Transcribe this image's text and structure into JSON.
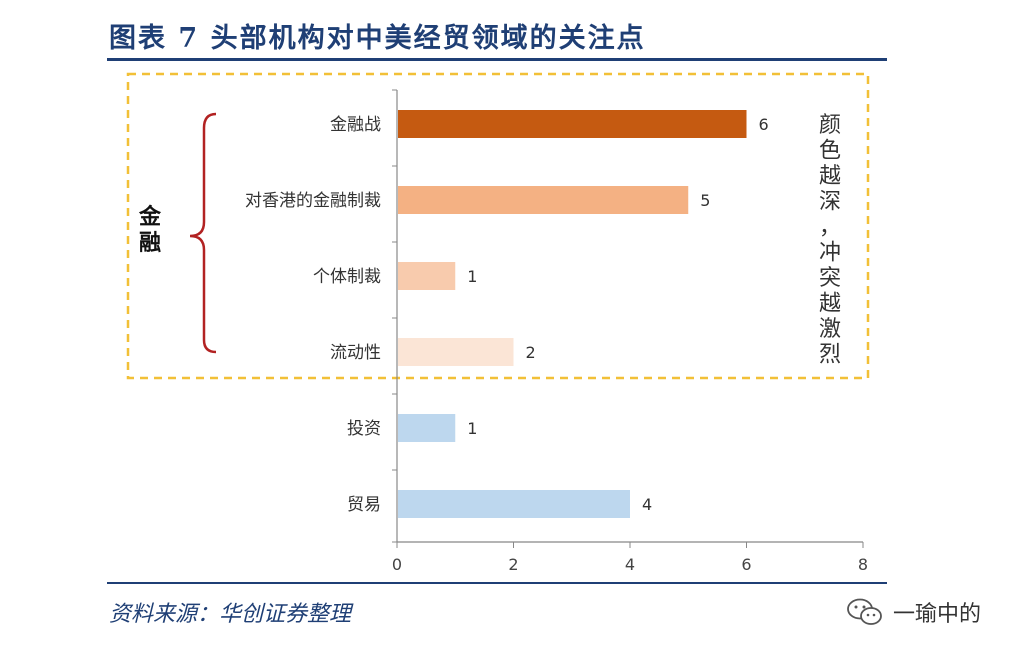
{
  "header": {
    "title": "图表 7   头部机构对中美经贸领域的关注点"
  },
  "footer": {
    "source": "资料来源：华创证券整理",
    "watermark": "一瑜中的"
  },
  "annotations": {
    "group_label": "金融",
    "side_note": "颜色越深，冲突越激烈"
  },
  "chart_data": {
    "type": "bar",
    "orientation": "horizontal",
    "categories": [
      "金融战",
      "对香港的金融制裁",
      "个体制裁",
      "流动性",
      "投资",
      "贸易"
    ],
    "values": [
      6,
      5,
      1,
      2,
      1,
      4
    ],
    "colors": [
      "#c55a11",
      "#f4b183",
      "#f8cbad",
      "#fbe5d6",
      "#bdd7ee",
      "#bdd7ee"
    ],
    "xlim": [
      0,
      8
    ],
    "xticks": [
      0,
      2,
      4,
      6,
      8
    ],
    "grid": false
  }
}
